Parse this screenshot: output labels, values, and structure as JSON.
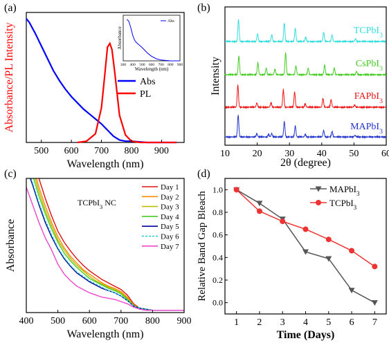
{
  "chart_data": [
    {
      "panel_label": "(a)",
      "type": "line",
      "xlabel": "Wavelength (nm)",
      "ylabel": "Absorbance/PL Intensity",
      "xlim": [
        450,
        975
      ],
      "xticks": [
        500,
        600,
        700,
        800,
        900
      ],
      "ylim": [
        0,
        1.05
      ],
      "legend": {
        "position": "center-right"
      },
      "series": [
        {
          "name": "Abs",
          "color": "#0000ff",
          "x": [
            450,
            460,
            480,
            500,
            520,
            540,
            560,
            580,
            600,
            620,
            640,
            660,
            680,
            700,
            720,
            740,
            760,
            780,
            800,
            850,
            900,
            950
          ],
          "y": [
            1.0,
            0.97,
            0.88,
            0.78,
            0.68,
            0.58,
            0.5,
            0.43,
            0.37,
            0.32,
            0.27,
            0.23,
            0.19,
            0.15,
            0.1,
            0.05,
            0.02,
            0.01,
            0.01,
            0.0,
            0.0,
            0.0
          ]
        },
        {
          "name": "PL",
          "color": "#ff0000",
          "x": [
            620,
            650,
            680,
            700,
            710,
            720,
            728,
            735,
            745,
            760,
            780,
            800,
            830,
            870,
            950
          ],
          "y": [
            0.0,
            0.01,
            0.07,
            0.28,
            0.52,
            0.77,
            0.8,
            0.75,
            0.55,
            0.22,
            0.06,
            0.01,
            0.0,
            0.0,
            0.0
          ]
        }
      ],
      "inset": {
        "xlabel": "Wavelength (nm)",
        "ylabel": "Absorbance",
        "xticks": [
          300,
          400,
          500,
          600,
          700,
          800,
          900
        ],
        "xlim": [
          300,
          900
        ],
        "legend": "Abs",
        "x": [
          340,
          360,
          380,
          400,
          420,
          440,
          460,
          480,
          500,
          530,
          560,
          600,
          650,
          700,
          750,
          800,
          850,
          900
        ],
        "y": [
          1.0,
          0.95,
          0.8,
          0.62,
          0.5,
          0.44,
          0.4,
          0.36,
          0.32,
          0.25,
          0.18,
          0.11,
          0.05,
          0.02,
          0.01,
          0.0,
          0.0,
          0.0
        ]
      }
    },
    {
      "panel_label": "(b)",
      "type": "line",
      "xlabel": "2θ (degree)",
      "ylabel": "Intensity",
      "xlim": [
        10,
        60
      ],
      "xticks": [
        10,
        20,
        30,
        40,
        50,
        60
      ],
      "series": [
        {
          "name": "TCPbI3",
          "color": "#33dddd",
          "offset": 3,
          "peaks": [
            [
              14.2,
              1.0
            ],
            [
              20.1,
              0.35
            ],
            [
              24.5,
              0.3
            ],
            [
              28.4,
              0.85
            ],
            [
              31.8,
              0.6
            ],
            [
              35.0,
              0.2
            ],
            [
              40.6,
              0.42
            ],
            [
              43.2,
              0.3
            ],
            [
              50.5,
              0.12
            ]
          ]
        },
        {
          "name": "CsPbI3",
          "color": "#44cc22",
          "offset": 2,
          "peaks": [
            [
              14.3,
              0.85
            ],
            [
              20.2,
              0.55
            ],
            [
              22.8,
              0.3
            ],
            [
              25.5,
              0.25
            ],
            [
              28.8,
              1.0
            ],
            [
              32.0,
              0.4
            ],
            [
              35.8,
              0.3
            ],
            [
              40.9,
              0.45
            ],
            [
              43.9,
              0.3
            ],
            [
              50.8,
              0.15
            ]
          ]
        },
        {
          "name": "FAPbI3",
          "color": "#ee1111",
          "offset": 1,
          "peaks": [
            [
              14.0,
              1.0
            ],
            [
              19.9,
              0.2
            ],
            [
              24.3,
              0.2
            ],
            [
              28.1,
              0.8
            ],
            [
              31.6,
              0.7
            ],
            [
              34.9,
              0.15
            ],
            [
              40.4,
              0.4
            ],
            [
              42.9,
              0.35
            ],
            [
              50.2,
              0.1
            ]
          ]
        },
        {
          "name": "MAPbI3",
          "color": "#2233cc",
          "offset": 0,
          "peaks": [
            [
              14.1,
              1.0
            ],
            [
              19.9,
              0.15
            ],
            [
              23.5,
              0.12
            ],
            [
              24.5,
              0.15
            ],
            [
              28.4,
              0.7
            ],
            [
              31.8,
              0.5
            ],
            [
              34.9,
              0.12
            ],
            [
              40.6,
              0.3
            ],
            [
              43.2,
              0.25
            ],
            [
              50.3,
              0.08
            ]
          ]
        }
      ]
    },
    {
      "panel_label": "(c)",
      "type": "line",
      "xlabel": "Wavelength (nm)",
      "ylabel": "Absorbance",
      "annotation": "TCPbI3 NC",
      "xlim": [
        400,
        900
      ],
      "xticks": [
        400,
        500,
        600,
        700,
        800,
        900
      ],
      "legend": {
        "position": "top-right"
      },
      "x": [
        400,
        420,
        440,
        460,
        480,
        500,
        520,
        540,
        560,
        580,
        600,
        620,
        640,
        660,
        680,
        700,
        720,
        740,
        760,
        780,
        800,
        850,
        900
      ],
      "series": [
        {
          "name": "Day 1",
          "color": "#dd1111",
          "y": [
            1.6,
            1.42,
            1.2,
            1.02,
            0.86,
            0.72,
            0.62,
            0.54,
            0.47,
            0.41,
            0.36,
            0.32,
            0.28,
            0.25,
            0.22,
            0.19,
            0.14,
            0.06,
            0.02,
            0.01,
            0.0,
            0.0,
            0.0
          ]
        },
        {
          "name": "Day 2",
          "color": "#ff8800",
          "y": [
            1.5,
            1.33,
            1.12,
            0.95,
            0.8,
            0.67,
            0.57,
            0.49,
            0.43,
            0.37,
            0.33,
            0.29,
            0.25,
            0.22,
            0.2,
            0.17,
            0.12,
            0.05,
            0.02,
            0.01,
            0.0,
            0.0,
            0.0
          ]
        },
        {
          "name": "Day 3",
          "color": "#bbbb00",
          "y": [
            1.45,
            1.28,
            1.08,
            0.91,
            0.77,
            0.64,
            0.55,
            0.47,
            0.41,
            0.36,
            0.31,
            0.27,
            0.24,
            0.21,
            0.19,
            0.16,
            0.11,
            0.05,
            0.02,
            0.01,
            0.0,
            0.0,
            0.0
          ]
        },
        {
          "name": "Day 4",
          "color": "#44cc22",
          "y": [
            1.4,
            1.23,
            1.04,
            0.88,
            0.74,
            0.62,
            0.52,
            0.45,
            0.39,
            0.34,
            0.29,
            0.26,
            0.23,
            0.2,
            0.18,
            0.15,
            0.1,
            0.04,
            0.02,
            0.01,
            0.0,
            0.0,
            0.0
          ]
        },
        {
          "name": "Day 5",
          "color": "#000099",
          "y": [
            1.3,
            1.14,
            0.96,
            0.8,
            0.67,
            0.56,
            0.47,
            0.4,
            0.34,
            0.3,
            0.26,
            0.23,
            0.2,
            0.18,
            0.16,
            0.13,
            0.09,
            0.04,
            0.02,
            0.01,
            0.0,
            0.0,
            0.0
          ]
        },
        {
          "name": "Day 6",
          "color": "#22cccc",
          "dashed": true,
          "y": [
            1.32,
            1.16,
            0.98,
            0.82,
            0.69,
            0.57,
            0.48,
            0.41,
            0.35,
            0.31,
            0.27,
            0.24,
            0.21,
            0.18,
            0.16,
            0.13,
            0.09,
            0.04,
            0.02,
            0.01,
            0.0,
            0.0,
            0.0
          ]
        },
        {
          "name": "Day 7",
          "color": "#ee44cc",
          "y": [
            1.12,
            0.96,
            0.8,
            0.66,
            0.55,
            0.42,
            0.33,
            0.27,
            0.22,
            0.19,
            0.16,
            0.14,
            0.12,
            0.11,
            0.1,
            0.08,
            0.06,
            0.03,
            0.01,
            0.0,
            0.0,
            0.0,
            0.0
          ]
        }
      ]
    },
    {
      "panel_label": "(d)",
      "type": "line",
      "xlabel": "Time (Days)",
      "ylabel": "Relative Band Gap Bleach",
      "xlim": [
        0.5,
        7.5
      ],
      "ylim": [
        -0.1,
        1.1
      ],
      "xticks": [
        1,
        2,
        3,
        4,
        5,
        6,
        7
      ],
      "yticks": [
        0.0,
        0.2,
        0.4,
        0.6,
        0.8,
        1.0
      ],
      "yticklabels": [
        "0.0",
        "0.2",
        "0.4",
        "0.6",
        "0.8",
        "1.0"
      ],
      "legend": {
        "position": "top-right"
      },
      "categories": [
        1,
        2,
        3,
        4,
        5,
        6,
        7
      ],
      "series": [
        {
          "name": "MAPbI3",
          "color": "#555555",
          "marker": "triangle-down",
          "values": [
            1.0,
            0.88,
            0.74,
            0.45,
            0.39,
            0.11,
            0.0
          ]
        },
        {
          "name": "TCPbI3",
          "color": "#ee3333",
          "marker": "circle",
          "values": [
            1.0,
            0.81,
            0.72,
            0.65,
            0.56,
            0.46,
            0.32
          ]
        }
      ]
    }
  ]
}
